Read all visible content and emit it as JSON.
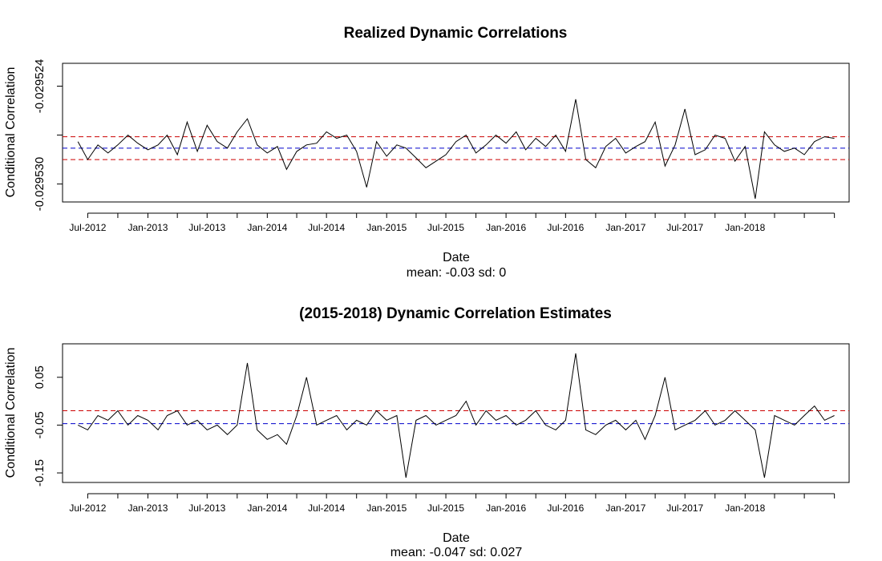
{
  "colors": {
    "series": "#000000",
    "mean_line": "#0000cc",
    "band_line": "#cc0000",
    "frame": "#000000",
    "background": "#ffffff"
  },
  "chart_data": [
    {
      "type": "line",
      "title": "Realized Dynamic Correlations",
      "xlabel": "Date",
      "ylabel": "Conditional Correlation",
      "subtitle": "mean: -0.03 sd: 0",
      "x_tick_labels": [
        "Jul-2012",
        "Jan-2013",
        "Jul-2013",
        "Jan-2014",
        "Jul-2014",
        "Jan-2015",
        "Jul-2015",
        "Jan-2016",
        "Jul-2016",
        "Jan-2017",
        "Jul-2017",
        "Jan-2018"
      ],
      "y_tick_values": [
        -0.029524,
        -0.029527,
        -0.02953
      ],
      "y_tick_labels": [
        "-0.029524",
        "",
        "-0.029530"
      ],
      "ylim": [
        -0.0295311,
        -0.0295226
      ],
      "xlim": [
        "2012-04-15",
        "2018-11-15"
      ],
      "mean_line": -0.0295278,
      "bands": [
        -0.0295271,
        -0.0295285
      ],
      "grid": false,
      "series": [
        {
          "x": [
            "2012-06-01",
            "2012-07-01",
            "2012-08-01",
            "2012-09-01",
            "2012-10-01",
            "2012-11-01",
            "2012-12-01",
            "2013-01-01",
            "2013-02-01",
            "2013-03-01",
            "2013-04-01",
            "2013-05-01",
            "2013-06-01",
            "2013-07-01",
            "2013-08-01",
            "2013-09-01",
            "2013-10-01",
            "2013-11-01",
            "2013-12-01",
            "2014-01-01",
            "2014-02-01",
            "2014-03-01",
            "2014-04-01",
            "2014-05-01",
            "2014-06-01",
            "2014-07-01",
            "2014-08-01",
            "2014-09-01",
            "2014-10-01",
            "2014-11-01",
            "2014-12-01",
            "2015-01-01",
            "2015-02-01",
            "2015-03-01",
            "2015-04-01",
            "2015-05-01",
            "2015-06-01",
            "2015-07-01",
            "2015-08-01",
            "2015-09-01",
            "2015-10-01",
            "2015-11-01",
            "2015-12-01",
            "2016-01-01",
            "2016-02-01",
            "2016-03-01",
            "2016-04-01",
            "2016-05-01",
            "2016-06-01",
            "2016-07-01",
            "2016-08-01",
            "2016-09-01",
            "2016-10-01",
            "2016-11-01",
            "2016-12-01",
            "2017-01-01",
            "2017-02-01",
            "2017-03-01",
            "2017-04-01",
            "2017-05-01",
            "2017-06-01",
            "2017-07-01",
            "2017-08-01",
            "2017-09-01",
            "2017-10-01",
            "2017-11-01",
            "2017-12-01",
            "2018-01-01",
            "2018-02-01",
            "2018-03-01",
            "2018-04-01",
            "2018-05-01",
            "2018-06-01",
            "2018-07-01",
            "2018-08-01",
            "2018-09-01",
            "2018-10-01"
          ],
          "values": [
            -0.0295274,
            -0.0295285,
            -0.0295276,
            -0.0295281,
            -0.0295276,
            -0.029527,
            -0.0295275,
            -0.0295279,
            -0.0295276,
            -0.029527,
            -0.0295282,
            -0.0295262,
            -0.029528,
            -0.0295264,
            -0.0295274,
            -0.0295278,
            -0.0295268,
            -0.029526,
            -0.0295276,
            -0.0295281,
            -0.0295277,
            -0.0295291,
            -0.029528,
            -0.0295276,
            -0.0295275,
            -0.0295268,
            -0.0295272,
            -0.029527,
            -0.029528,
            -0.0295302,
            -0.0295274,
            -0.0295283,
            -0.0295276,
            -0.0295278,
            -0.0295284,
            -0.029529,
            -0.0295286,
            -0.0295282,
            -0.0295274,
            -0.029527,
            -0.0295281,
            -0.0295276,
            -0.029527,
            -0.0295275,
            -0.0295268,
            -0.0295279,
            -0.0295272,
            -0.0295277,
            -0.029527,
            -0.029528,
            -0.0295248,
            -0.0295285,
            -0.029529,
            -0.0295277,
            -0.0295272,
            -0.0295281,
            -0.0295277,
            -0.0295274,
            -0.0295262,
            -0.0295289,
            -0.0295276,
            -0.0295254,
            -0.0295282,
            -0.0295279,
            -0.029527,
            -0.0295272,
            -0.0295286,
            -0.0295277,
            -0.0295309,
            -0.0295268,
            -0.0295276,
            -0.029528,
            -0.0295278,
            -0.0295282,
            -0.0295274,
            -0.0295271,
            -0.0295272
          ]
        }
      ]
    },
    {
      "type": "line",
      "title": "(2015-2018) Dynamic Correlation Estimates",
      "xlabel": "Date",
      "ylabel": "Conditional Correlation",
      "subtitle": "mean: -0.047 sd: 0.027",
      "x_tick_labels": [
        "Jul-2012",
        "Jan-2013",
        "Jul-2013",
        "Jan-2014",
        "Jul-2014",
        "Jan-2015",
        "Jul-2015",
        "Jan-2016",
        "Jul-2016",
        "Jan-2017",
        "Jul-2017",
        "Jan-2018"
      ],
      "y_tick_values": [
        0.05,
        -0.05,
        -0.15
      ],
      "y_tick_labels": [
        "0.05",
        "-0.05",
        "-0.15"
      ],
      "ylim": [
        -0.17,
        0.12
      ],
      "xlim": [
        "2012-04-15",
        "2018-11-15"
      ],
      "mean_line": -0.047,
      "bands": [
        -0.02
      ],
      "grid": false,
      "series": [
        {
          "x": [
            "2012-06-01",
            "2012-07-01",
            "2012-08-01",
            "2012-09-01",
            "2012-10-01",
            "2012-11-01",
            "2012-12-01",
            "2013-01-01",
            "2013-02-01",
            "2013-03-01",
            "2013-04-01",
            "2013-05-01",
            "2013-06-01",
            "2013-07-01",
            "2013-08-01",
            "2013-09-01",
            "2013-10-01",
            "2013-11-01",
            "2013-12-01",
            "2014-01-01",
            "2014-02-01",
            "2014-03-01",
            "2014-04-01",
            "2014-05-01",
            "2014-06-01",
            "2014-07-01",
            "2014-08-01",
            "2014-09-01",
            "2014-10-01",
            "2014-11-01",
            "2014-12-01",
            "2015-01-01",
            "2015-02-01",
            "2015-03-01",
            "2015-04-01",
            "2015-05-01",
            "2015-06-01",
            "2015-07-01",
            "2015-08-01",
            "2015-09-01",
            "2015-10-01",
            "2015-11-01",
            "2015-12-01",
            "2016-01-01",
            "2016-02-01",
            "2016-03-01",
            "2016-04-01",
            "2016-05-01",
            "2016-06-01",
            "2016-07-01",
            "2016-08-01",
            "2016-09-01",
            "2016-10-01",
            "2016-11-01",
            "2016-12-01",
            "2017-01-01",
            "2017-02-01",
            "2017-03-01",
            "2017-04-01",
            "2017-05-01",
            "2017-06-01",
            "2017-07-01",
            "2017-08-01",
            "2017-09-01",
            "2017-10-01",
            "2017-11-01",
            "2017-12-01",
            "2018-01-01",
            "2018-02-01",
            "2018-03-01",
            "2018-04-01",
            "2018-05-01",
            "2018-06-01",
            "2018-07-01",
            "2018-08-01",
            "2018-09-01",
            "2018-10-01"
          ],
          "values": [
            -0.05,
            -0.06,
            -0.03,
            -0.04,
            -0.02,
            -0.05,
            -0.03,
            -0.04,
            -0.06,
            -0.03,
            -0.02,
            -0.05,
            -0.04,
            -0.06,
            -0.05,
            -0.07,
            -0.05,
            0.08,
            -0.06,
            -0.08,
            -0.07,
            -0.09,
            -0.03,
            0.05,
            -0.05,
            -0.04,
            -0.03,
            -0.06,
            -0.04,
            -0.05,
            -0.02,
            -0.04,
            -0.03,
            -0.16,
            -0.04,
            -0.03,
            -0.05,
            -0.04,
            -0.03,
            0.0,
            -0.05,
            -0.02,
            -0.04,
            -0.03,
            -0.05,
            -0.04,
            -0.02,
            -0.05,
            -0.06,
            -0.04,
            0.1,
            -0.06,
            -0.07,
            -0.05,
            -0.04,
            -0.06,
            -0.04,
            -0.08,
            -0.03,
            0.05,
            -0.06,
            -0.05,
            -0.04,
            -0.02,
            -0.05,
            -0.04,
            -0.02,
            -0.04,
            -0.06,
            -0.16,
            -0.03,
            -0.04,
            -0.05,
            -0.03,
            -0.01,
            -0.04,
            -0.03
          ]
        }
      ]
    }
  ]
}
